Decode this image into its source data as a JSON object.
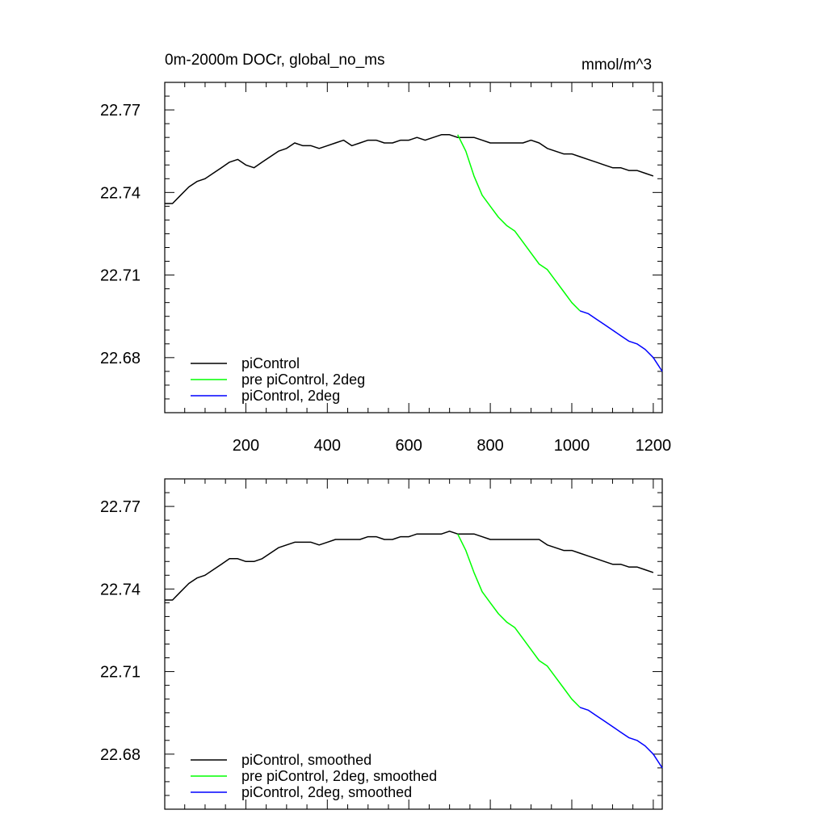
{
  "figure": {
    "title_left": "0m-2000m DOCr, global_no_ms",
    "title_right": "mmol/m^3"
  },
  "chart_data": [
    {
      "type": "line",
      "panel": "top",
      "xlim": [
        1,
        1222
      ],
      "ylim": [
        22.66,
        22.78
      ],
      "yticks": [
        22.68,
        22.71,
        22.74,
        22.77
      ],
      "ytick_labels": [
        "22.68",
        "22.71",
        "22.74",
        "22.77"
      ],
      "xticks": [
        200,
        400,
        600,
        800,
        1000,
        1200
      ],
      "xtick_labels": [
        "200",
        "400",
        "600",
        "800",
        "1000",
        "1200"
      ],
      "grid": false,
      "legend_position": "bottom-left",
      "series": [
        {
          "name": "piControl",
          "color": "#000000",
          "x": [
            1,
            20,
            40,
            60,
            80,
            100,
            120,
            140,
            160,
            180,
            200,
            220,
            240,
            260,
            280,
            300,
            320,
            340,
            360,
            380,
            400,
            420,
            440,
            460,
            480,
            500,
            520,
            540,
            560,
            580,
            600,
            620,
            640,
            660,
            680,
            700,
            720,
            740,
            760,
            780,
            800,
            820,
            840,
            860,
            880,
            900,
            920,
            940,
            960,
            980,
            1000,
            1020,
            1040,
            1060,
            1080,
            1100,
            1120,
            1140,
            1160,
            1180,
            1200
          ],
          "y": [
            22.736,
            22.736,
            22.739,
            22.742,
            22.744,
            22.745,
            22.747,
            22.749,
            22.751,
            22.752,
            22.75,
            22.749,
            22.751,
            22.753,
            22.755,
            22.756,
            22.758,
            22.757,
            22.757,
            22.756,
            22.757,
            22.758,
            22.759,
            22.757,
            22.758,
            22.759,
            22.759,
            22.758,
            22.758,
            22.759,
            22.759,
            22.76,
            22.759,
            22.76,
            22.761,
            22.761,
            22.76,
            22.76,
            22.76,
            22.759,
            22.758,
            22.758,
            22.758,
            22.758,
            22.758,
            22.759,
            22.758,
            22.756,
            22.755,
            22.754,
            22.754,
            22.753,
            22.752,
            22.751,
            22.75,
            22.749,
            22.749,
            22.748,
            22.748,
            22.747,
            22.746
          ]
        },
        {
          "name": "pre piControl, 2deg",
          "color": "#00ff00",
          "x": [
            720,
            740,
            760,
            780,
            800,
            820,
            840,
            860,
            880,
            900,
            920,
            940,
            960,
            980,
            1000,
            1020
          ],
          "y": [
            22.761,
            22.755,
            22.746,
            22.739,
            22.735,
            22.731,
            22.728,
            22.726,
            22.722,
            22.718,
            22.714,
            22.712,
            22.708,
            22.704,
            22.7,
            22.697
          ]
        },
        {
          "name": "piControl, 2deg",
          "color": "#0000ff",
          "x": [
            1020,
            1040,
            1060,
            1080,
            1100,
            1120,
            1140,
            1160,
            1180,
            1200,
            1222
          ],
          "y": [
            22.697,
            22.696,
            22.694,
            22.692,
            22.69,
            22.688,
            22.686,
            22.685,
            22.683,
            22.68,
            22.675
          ]
        }
      ]
    },
    {
      "type": "line",
      "panel": "bottom",
      "xlim": [
        1,
        1222
      ],
      "ylim": [
        22.66,
        22.78
      ],
      "yticks": [
        22.68,
        22.71,
        22.74,
        22.77
      ],
      "ytick_labels": [
        "22.68",
        "22.71",
        "22.74",
        "22.77"
      ],
      "xticks": [
        200,
        400,
        600,
        800,
        1000,
        1200
      ],
      "xtick_labels": [],
      "grid": false,
      "legend_position": "bottom-left",
      "series": [
        {
          "name": "piControl, smoothed",
          "color": "#000000",
          "x": [
            1,
            20,
            40,
            60,
            80,
            100,
            120,
            140,
            160,
            180,
            200,
            220,
            240,
            260,
            280,
            300,
            320,
            340,
            360,
            380,
            400,
            420,
            440,
            460,
            480,
            500,
            520,
            540,
            560,
            580,
            600,
            620,
            640,
            660,
            680,
            700,
            720,
            740,
            760,
            780,
            800,
            820,
            840,
            860,
            880,
            900,
            920,
            940,
            960,
            980,
            1000,
            1020,
            1040,
            1060,
            1080,
            1100,
            1120,
            1140,
            1160,
            1180,
            1200
          ],
          "y": [
            22.736,
            22.736,
            22.739,
            22.742,
            22.744,
            22.745,
            22.747,
            22.749,
            22.751,
            22.751,
            22.75,
            22.75,
            22.751,
            22.753,
            22.755,
            22.756,
            22.757,
            22.757,
            22.757,
            22.756,
            22.757,
            22.758,
            22.758,
            22.758,
            22.758,
            22.759,
            22.759,
            22.758,
            22.758,
            22.759,
            22.759,
            22.76,
            22.76,
            22.76,
            22.76,
            22.761,
            22.76,
            22.76,
            22.76,
            22.759,
            22.758,
            22.758,
            22.758,
            22.758,
            22.758,
            22.758,
            22.758,
            22.756,
            22.755,
            22.754,
            22.754,
            22.753,
            22.752,
            22.751,
            22.75,
            22.749,
            22.749,
            22.748,
            22.748,
            22.747,
            22.746
          ]
        },
        {
          "name": "pre piControl, 2deg, smoothed",
          "color": "#00ff00",
          "x": [
            720,
            740,
            760,
            780,
            800,
            820,
            840,
            860,
            880,
            900,
            920,
            940,
            960,
            980,
            1000,
            1020
          ],
          "y": [
            22.76,
            22.754,
            22.746,
            22.739,
            22.735,
            22.731,
            22.728,
            22.726,
            22.722,
            22.718,
            22.714,
            22.712,
            22.708,
            22.704,
            22.7,
            22.697
          ]
        },
        {
          "name": "piControl, 2deg, smoothed",
          "color": "#0000ff",
          "x": [
            1020,
            1040,
            1060,
            1080,
            1100,
            1120,
            1140,
            1160,
            1180,
            1200,
            1222
          ],
          "y": [
            22.697,
            22.696,
            22.694,
            22.692,
            22.69,
            22.688,
            22.686,
            22.685,
            22.683,
            22.68,
            22.675
          ]
        }
      ]
    }
  ]
}
